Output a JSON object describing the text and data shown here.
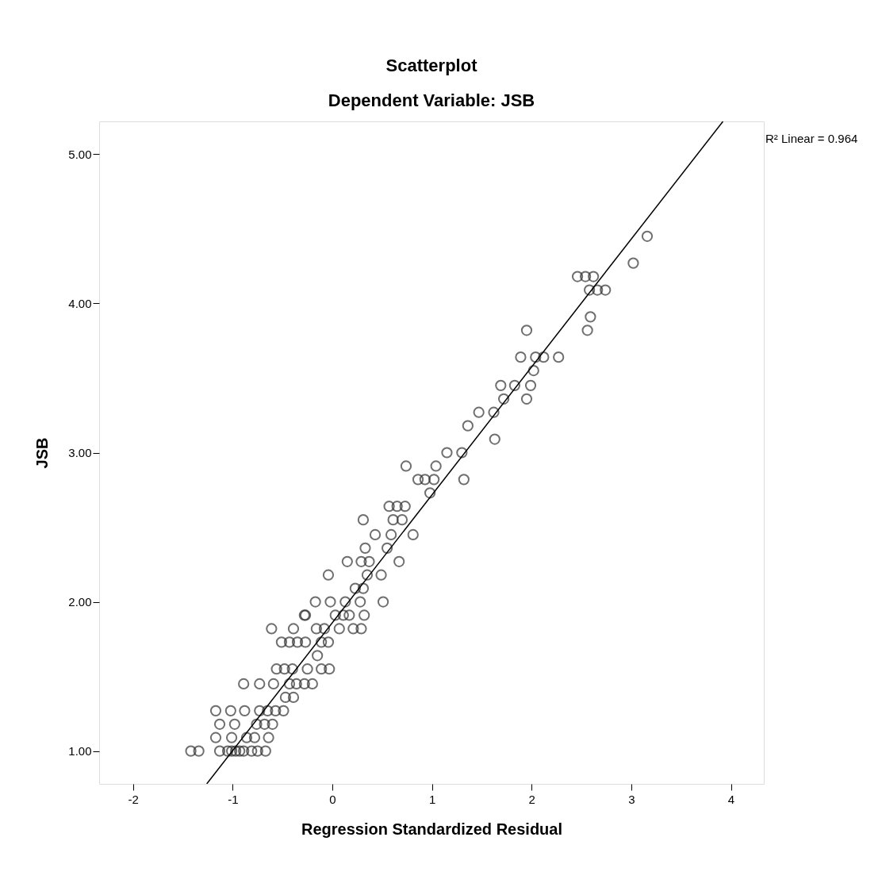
{
  "chart_data": {
    "type": "scatter",
    "title": "Scatterplot",
    "subtitle": "Dependent Variable: JSB",
    "xlabel": "Regression Standardized Residual",
    "ylabel": "JSB",
    "annotations": [
      "R² Linear = 0.964"
    ],
    "xlim": [
      -2.34,
      4.33
    ],
    "xticks": [
      {
        "value": -2,
        "label": "-2"
      },
      {
        "value": -1,
        "label": "-1"
      },
      {
        "value": 0,
        "label": "0"
      },
      {
        "value": 1,
        "label": "1"
      },
      {
        "value": 2,
        "label": "2"
      },
      {
        "value": 3,
        "label": "3"
      },
      {
        "value": 4,
        "label": "4"
      }
    ],
    "ylim": [
      0.78,
      5.22
    ],
    "yticks": [
      {
        "value": 1,
        "label": "1.00"
      },
      {
        "value": 2,
        "label": "2.00"
      },
      {
        "value": 3,
        "label": "3.00"
      },
      {
        "value": 4,
        "label": "4.00"
      },
      {
        "value": 5,
        "label": "5.00"
      }
    ],
    "grid": false,
    "series": [
      {
        "marker": "circle",
        "color": "#333333",
        "x": [
          -1.42,
          -1.34,
          -1.13,
          -1.05,
          -1.01,
          -0.97,
          -0.93,
          -0.89,
          -0.81,
          -0.75,
          -0.67,
          -1.17,
          -1.01,
          -0.86,
          -0.78,
          -0.64,
          -1.13,
          -0.98,
          -0.76,
          -0.68,
          -0.6,
          -1.17,
          -1.02,
          -0.88,
          -0.73,
          -0.65,
          -0.57,
          -0.49,
          -0.47,
          -0.39,
          -0.89,
          -0.73,
          -0.59,
          -0.43,
          -0.36,
          -0.28,
          -0.2,
          -0.56,
          -0.48,
          -0.4,
          -0.25,
          -0.11,
          -0.03,
          -0.15,
          -0.51,
          -0.43,
          -0.35,
          -0.27,
          -0.11,
          -0.04,
          -0.61,
          -0.39,
          -0.16,
          -0.08,
          0.07,
          0.21,
          0.29,
          -0.28,
          -0.27,
          0.03,
          0.11,
          0.17,
          0.32,
          -0.17,
          -0.02,
          0.13,
          0.28,
          0.51,
          0.23,
          0.31,
          -0.04,
          0.35,
          0.49,
          0.15,
          0.29,
          0.37,
          0.67,
          0.33,
          0.55,
          0.43,
          0.59,
          0.81,
          0.31,
          0.61,
          0.7,
          0.57,
          0.65,
          0.73,
          0.98,
          0.86,
          0.93,
          1.02,
          1.32,
          0.74,
          1.04,
          1.15,
          1.3,
          1.63,
          1.36,
          1.47,
          1.62,
          1.72,
          1.95,
          1.69,
          1.83,
          1.99,
          2.02,
          1.89,
          2.04,
          2.12,
          2.27,
          1.95,
          2.56,
          2.59,
          2.58,
          2.66,
          2.74,
          2.46,
          2.54,
          2.62,
          3.02,
          3.16
        ],
        "values": [
          1.0,
          1.0,
          1.0,
          1.0,
          1.0,
          1.0,
          1.0,
          1.0,
          1.0,
          1.0,
          1.0,
          1.09,
          1.09,
          1.09,
          1.09,
          1.09,
          1.18,
          1.18,
          1.18,
          1.18,
          1.18,
          1.27,
          1.27,
          1.27,
          1.27,
          1.27,
          1.27,
          1.27,
          1.36,
          1.36,
          1.45,
          1.45,
          1.45,
          1.45,
          1.45,
          1.45,
          1.45,
          1.55,
          1.55,
          1.55,
          1.55,
          1.55,
          1.55,
          1.64,
          1.73,
          1.73,
          1.73,
          1.73,
          1.73,
          1.73,
          1.82,
          1.82,
          1.82,
          1.82,
          1.82,
          1.82,
          1.82,
          1.91,
          1.91,
          1.91,
          1.91,
          1.91,
          1.91,
          2.0,
          2.0,
          2.0,
          2.0,
          2.0,
          2.09,
          2.09,
          2.18,
          2.18,
          2.18,
          2.27,
          2.27,
          2.27,
          2.27,
          2.36,
          2.36,
          2.45,
          2.45,
          2.45,
          2.55,
          2.55,
          2.55,
          2.64,
          2.64,
          2.64,
          2.73,
          2.82,
          2.82,
          2.82,
          2.82,
          2.91,
          2.91,
          3.0,
          3.0,
          3.09,
          3.18,
          3.27,
          3.27,
          3.36,
          3.36,
          3.45,
          3.45,
          3.45,
          3.55,
          3.64,
          3.64,
          3.64,
          3.64,
          3.82,
          3.82,
          3.91,
          4.09,
          4.09,
          4.09,
          4.18,
          4.18,
          4.18,
          4.27,
          4.45
        ]
      },
      {
        "type": "line",
        "color": "#000000",
        "x": [
          -1.26,
          3.92
        ],
        "values": [
          0.78,
          5.22
        ]
      }
    ]
  }
}
